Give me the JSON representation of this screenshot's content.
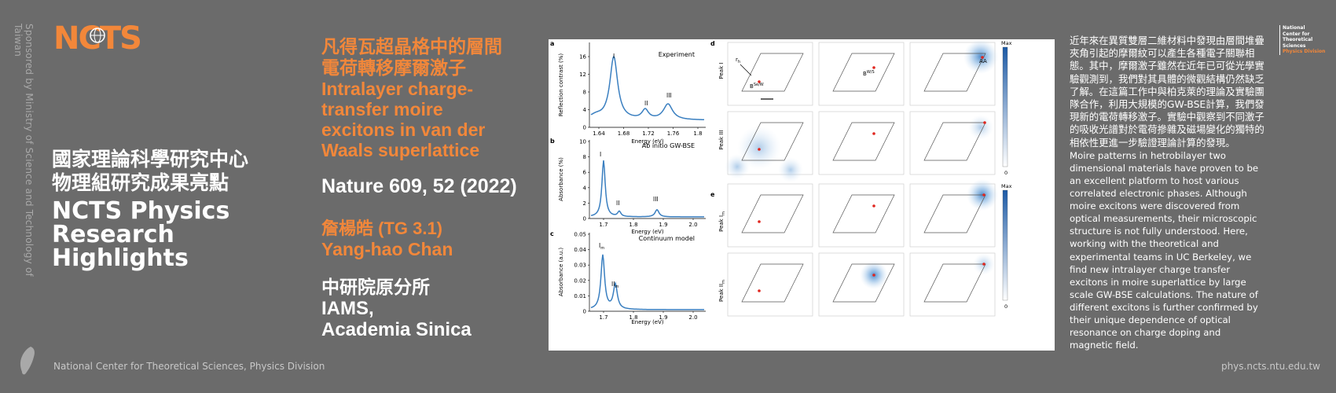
{
  "sponsor": "Sponsored by Ministry of Science and Technology of Taiwan",
  "logo_text": "NCTS",
  "header": {
    "title_zh_line1": "國家理論科學研究中心",
    "title_zh_line2": "物理組研究成果亮點",
    "title_en_line1": "NCTS Physics",
    "title_en_line2": "Research Highlights"
  },
  "paper": {
    "title_zh_line1": "凡得瓦超晶格中的層間",
    "title_zh_line2": "電荷轉移摩爾激子",
    "title_en_line1": "Intralayer charge-",
    "title_en_line2": "transfer moire",
    "title_en_line3": "excitons in van der",
    "title_en_line4": "Waals superlattice",
    "citation": "Nature 609, 52 (2022)",
    "author_zh": "詹楊皓 (TG 3.1)",
    "author_en": "Yang-hao Chan",
    "institution_zh": "中研院原分所",
    "institution_en_line1": "IAMS,",
    "institution_en_line2": "Academia Sinica"
  },
  "figure": {
    "panel_a": "a",
    "panel_b": "b",
    "panel_c": "c",
    "panel_d": "d",
    "panel_e": "e",
    "a_label": "Experiment",
    "a_ylabel": "Reflection contrast (%)",
    "a_xlabel": "Energy (eV)",
    "a_peaks": [
      "I",
      "II",
      "III"
    ],
    "a_yticks": [
      "16",
      "12",
      "8",
      "4",
      "0"
    ],
    "a_xticks": [
      "1.64",
      "1.68",
      "1.72",
      "1.76",
      "1.8"
    ],
    "b_label": "Ab initio GW-BSE",
    "b_ylabel": "Absorbance (%)",
    "b_xlabel": "Energy (eV)",
    "b_peaks": [
      "I",
      "II",
      "III"
    ],
    "b_yticks": [
      "10",
      "8",
      "6",
      "4",
      "2",
      "0"
    ],
    "b_xticks": [
      "1.7",
      "1.8",
      "1.9",
      "2.0"
    ],
    "c_label": "Continuum model",
    "c_ylabel": "Absorbance (a.u.)",
    "c_xlabel": "Energy (eV)",
    "c_peak_main": "I",
    "c_peak_main_sub": "m",
    "c_peak_second": "II",
    "c_peak_second_sub": "m",
    "c_yticks": [
      "0.05",
      "0.04",
      "0.03",
      "0.02",
      "0.01",
      "0"
    ],
    "c_xticks": [
      "1.7",
      "1.8",
      "1.9",
      "2.0"
    ],
    "d_row1": "Peak I",
    "d_row2": "Peak III",
    "e_row1": "Peak I",
    "e_row1_sub": "m",
    "e_row2": "Peak II",
    "e_row2_sub": "m",
    "r_label": "r",
    "r_sub": "h",
    "label_B": "B",
    "label_B_sup1": "Se/W",
    "label_B_sup2": "W/S",
    "label_AA": "AA",
    "scale_max": "Max",
    "scale_zero": "0"
  },
  "description": {
    "zh": "近年來在異質雙層二維材料中發現由層間堆疊夾角引起的摩爾紋可以產生各種電子關聯相態。其中，摩爾激子雖然在近年已可從光學實驗觀測到，我們對其具體的微觀結構仍然缺乏了解。在這篇工作中與柏克萊的理論及實驗團隊合作，利用大規模的GW-BSE計算，我們發現新的電荷轉移激子。實驗中觀察到不同激子的吸收光譜對於電荷摻雜及磁場變化的獨特的相依性更進一步驗證理論計算的發現。",
    "en": "Moire patterns in hetrobilayer two dimensional materials have proven to be an excellent platform to host various correlated electronic phases. Although moire excitons were discovered from optical measurements, their microscopic structure is not fully understood. Here, working with the theoretical and experimental teams in UC Berkeley, we find new intralayer charge transfer excitons in moire superlattice by large scale GW-BSE calculations. The nature of different excitons is further confirmed by their unique dependence of optical resonance on charge doping and magnetic field."
  },
  "brand_mini": {
    "line1": "National",
    "line2": "Center for",
    "line3": "Theoretical",
    "line4": "Sciences",
    "line5": "Physics Division"
  },
  "footer": {
    "left": "National Center for Theoretical Sciences, Physics Division",
    "right": "phys.ncts.ntu.edu.tw"
  },
  "colors": {
    "background": "#6b6b6b",
    "accent_orange": "#f2873a",
    "curve_blue": "#3a7fc0",
    "marker_red": "#e0261f"
  }
}
